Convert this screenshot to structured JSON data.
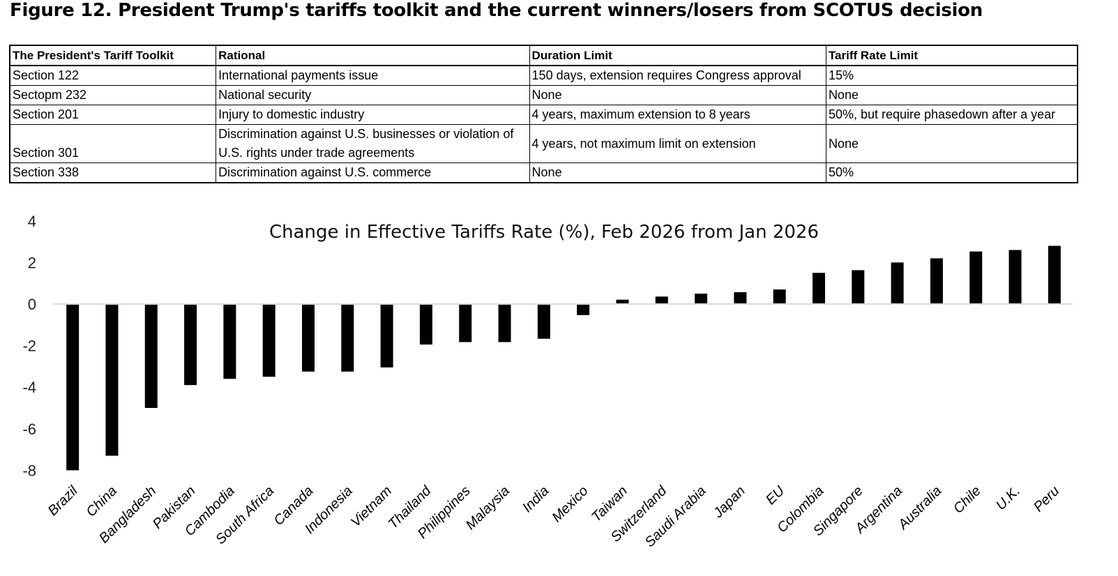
{
  "figure_title": "Figure 12. President Trump's tariffs toolkit and the current winners/losers from SCOTUS decision",
  "table": {
    "headers": [
      "The President's Tariff Toolkit",
      "Rational",
      "Duration Limit",
      "Tariff Rate Limit"
    ],
    "rows": [
      [
        "Section 122",
        "International payments issue",
        "150 days, extension requires Congress approval",
        "15%"
      ],
      [
        "Sectopm 232",
        "National security",
        "None",
        "None"
      ],
      [
        "Section 201",
        "Injury to domestic industry",
        "4 years, maximum extension to 8 years",
        "50%, but require phasedown after a year"
      ],
      [
        "Section 301",
        "Discrimination against U.S. businesses or violation of U.S. rights under trade agreements",
        "4 years, not maximum limit on extension",
        "None"
      ],
      [
        "Section 338",
        "Discrimination against U.S. commerce",
        "None",
        "50%"
      ]
    ]
  },
  "chart_data": {
    "type": "bar",
    "title": "Change in Effective Tariffs Rate (%), Feb 2026 from Jan 2026",
    "xlabel": "",
    "ylabel": "",
    "ylim": [
      -8,
      4
    ],
    "yticks": [
      4,
      2,
      0,
      -2,
      -4,
      -6,
      -8
    ],
    "grid": false,
    "legend": "none",
    "bar_color": "#000000",
    "zero_line_color": "#d9d9d9",
    "categories": [
      "Brazil",
      "China",
      "Bangladesh",
      "Pakistan",
      "Cambodia",
      "South Africa",
      "Canada",
      "Indonesia",
      "Vietnam",
      "Thailand",
      "Philippines",
      "Malaysia",
      "India",
      "Mexico",
      "Taiwan",
      "Switzerland",
      "Saudi Arabia",
      "Japan",
      "EU",
      "Colombia",
      "Singapore",
      "Argentina",
      "Australia",
      "Chile",
      "U.K.",
      "Peru"
    ],
    "values": [
      -8.0,
      -7.3,
      -5.0,
      -3.9,
      -3.6,
      -3.5,
      -3.25,
      -3.25,
      -3.05,
      -1.95,
      -1.83,
      -1.83,
      -1.67,
      -0.53,
      0.21,
      0.36,
      0.5,
      0.57,
      0.7,
      1.5,
      1.63,
      2.0,
      2.2,
      2.53,
      2.6,
      2.8
    ]
  }
}
